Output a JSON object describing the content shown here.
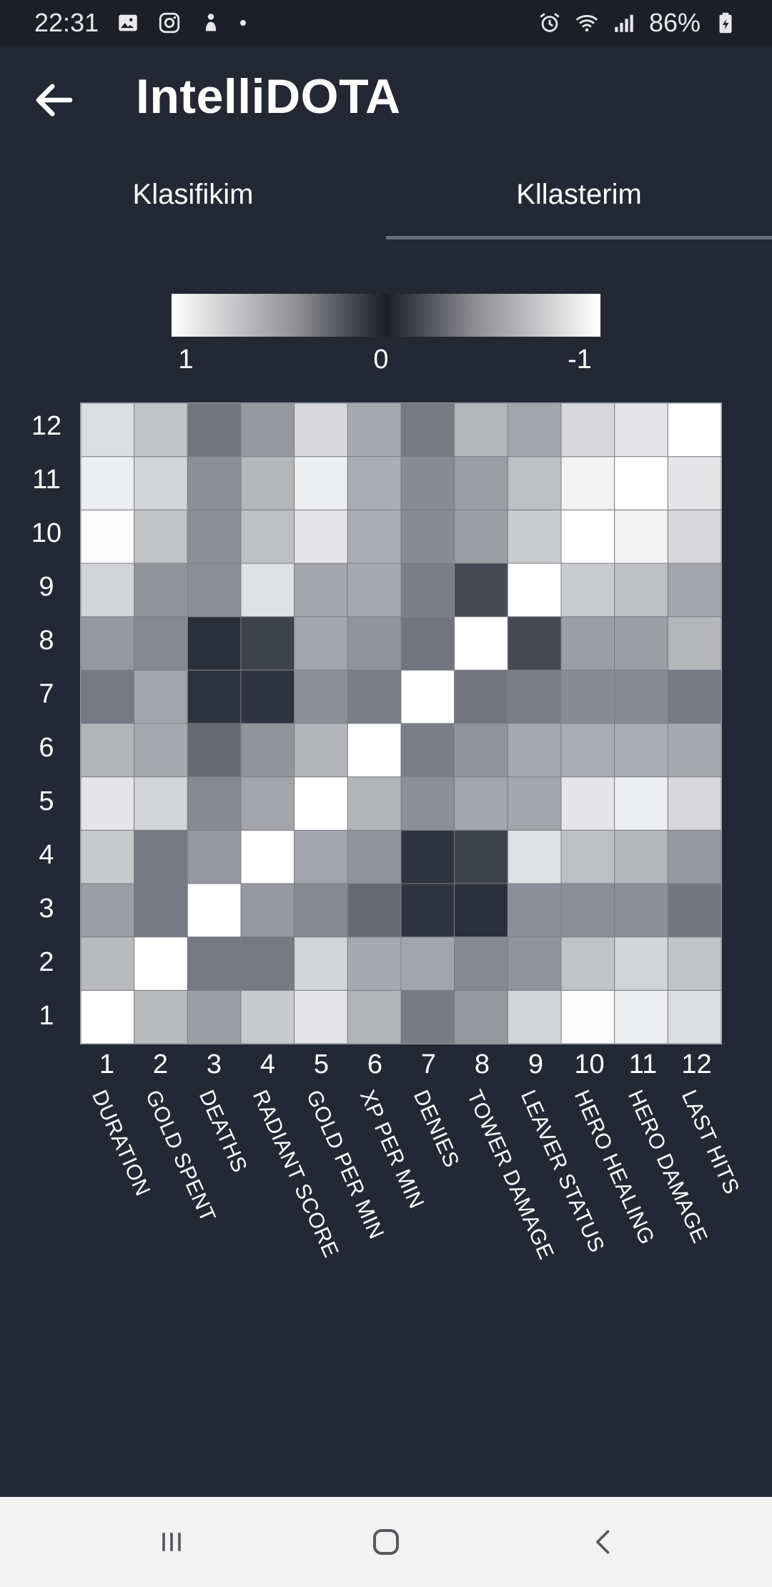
{
  "status_bar": {
    "time": "22:31",
    "battery": "86%",
    "left_icons": [
      "gallery-icon",
      "instagram-icon",
      "notification-icon"
    ],
    "right_icons": [
      "alarm-icon",
      "wifi-icon",
      "signal-icon",
      "battery-icon"
    ]
  },
  "app_bar": {
    "title": "IntelliDOTA",
    "back_icon": "arrow-left-icon"
  },
  "tabs": [
    {
      "label": "Klasifikim",
      "selected": false
    },
    {
      "label": "Kllasterim",
      "selected": true
    }
  ],
  "colors": {
    "background": "#242835",
    "status_bar": "#1c1f28",
    "tab_indicator": "#6b6f7c",
    "nav_bar": "#f2f2f2"
  },
  "colorbar": {
    "labels": [
      "1",
      "0",
      "-1"
    ]
  },
  "chart_data": {
    "type": "heatmap",
    "title": "",
    "x_tick_numbers": [
      "1",
      "2",
      "3",
      "4",
      "5",
      "6",
      "7",
      "8",
      "9",
      "10",
      "11",
      "12"
    ],
    "y_tick_numbers": [
      "1",
      "2",
      "3",
      "4",
      "5",
      "6",
      "7",
      "8",
      "9",
      "10",
      "11",
      "12"
    ],
    "feature_names": [
      "DURATION",
      "GOLD SPENT",
      "DEATHS",
      "RADIANT SCORE",
      "GOLD PER MIN",
      "XP PER MIN",
      "DENIES",
      "TOWER DAMAGE",
      "LEAVER STATUS",
      "HERO HEALING",
      "HERO DAMAGE",
      "LAST HITS"
    ],
    "value_range": [
      -1,
      1
    ],
    "matrix_rows_bottom_to_top": [
      [
        1.0,
        0.68,
        0.55,
        0.75,
        0.88,
        0.65,
        0.38,
        0.52,
        0.8,
        0.98,
        0.92,
        0.84
      ],
      [
        0.68,
        1.0,
        0.38,
        0.38,
        0.8,
        0.6,
        0.58,
        0.45,
        0.5,
        0.72,
        0.8,
        0.72
      ],
      [
        0.55,
        0.38,
        1.0,
        0.52,
        0.45,
        0.3,
        0.05,
        0.03,
        0.48,
        0.48,
        0.48,
        0.36
      ],
      [
        0.75,
        0.38,
        0.52,
        1.0,
        0.58,
        0.5,
        0.05,
        0.12,
        0.86,
        0.7,
        0.66,
        0.52
      ],
      [
        0.88,
        0.8,
        0.45,
        0.58,
        1.0,
        0.65,
        0.48,
        0.58,
        0.58,
        0.88,
        0.92,
        0.82
      ],
      [
        0.65,
        0.6,
        0.3,
        0.5,
        0.65,
        1.0,
        0.4,
        0.5,
        0.6,
        0.62,
        0.62,
        0.6
      ],
      [
        0.38,
        0.58,
        0.05,
        0.05,
        0.48,
        0.4,
        1.0,
        0.36,
        0.4,
        0.46,
        0.46,
        0.38
      ],
      [
        0.52,
        0.45,
        0.03,
        0.12,
        0.58,
        0.5,
        0.36,
        1.0,
        0.16,
        0.55,
        0.55,
        0.66
      ],
      [
        0.8,
        0.5,
        0.48,
        0.86,
        0.58,
        0.6,
        0.4,
        0.16,
        1.0,
        0.76,
        0.7,
        0.58
      ],
      [
        0.98,
        0.72,
        0.48,
        0.7,
        0.88,
        0.62,
        0.46,
        0.55,
        0.76,
        1.0,
        0.94,
        0.82
      ],
      [
        0.92,
        0.8,
        0.48,
        0.66,
        0.92,
        0.62,
        0.46,
        0.55,
        0.7,
        0.94,
        1.0,
        0.88
      ],
      [
        0.84,
        0.72,
        0.36,
        0.52,
        0.82,
        0.6,
        0.38,
        0.66,
        0.58,
        0.82,
        0.88,
        1.0
      ]
    ]
  },
  "nav_bar": {
    "items": [
      "recent-apps-icon",
      "home-icon",
      "back-icon"
    ]
  }
}
